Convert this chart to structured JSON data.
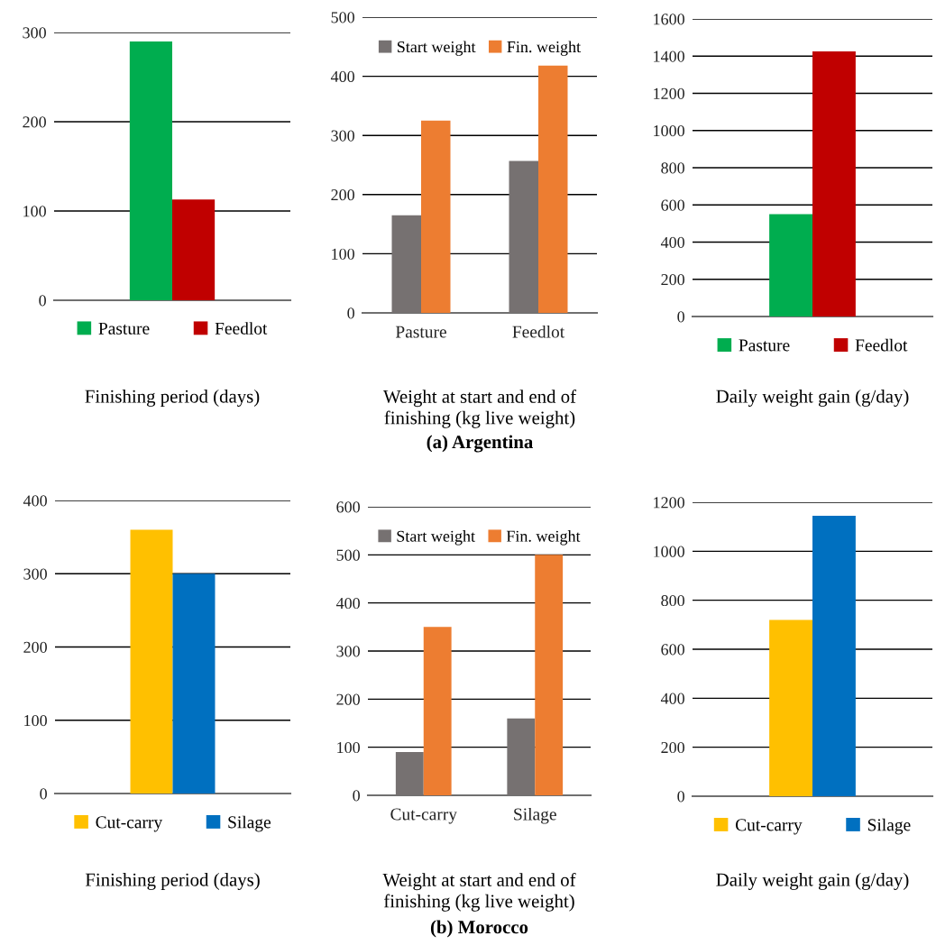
{
  "chart_data": [
    {
      "type": "bar",
      "xlabel": "Finishing period (days)",
      "categories": [
        null
      ],
      "series": [
        {
          "name": "Pasture",
          "color": "#00ad4f",
          "values": [
            290
          ]
        },
        {
          "name": "Feedlot",
          "color": "#c00000",
          "values": [
            113
          ]
        }
      ],
      "ylim": [
        0,
        300
      ],
      "yticks": [
        0,
        100,
        200,
        300
      ],
      "grid": "y",
      "legend": "bottom"
    },
    {
      "type": "bar",
      "xlabel": "Weight at start and end of\nfinishing (kg live weight)",
      "categories": [
        "Pasture",
        "Feedlot"
      ],
      "series": [
        {
          "name": "Start weight",
          "color": "#767171",
          "values": [
            165,
            257
          ]
        },
        {
          "name": "Fin. weight",
          "color": "#ed7d31",
          "values": [
            325,
            418
          ]
        }
      ],
      "ylim": [
        0,
        500
      ],
      "yticks": [
        0,
        100,
        200,
        300,
        400,
        500
      ],
      "grid": "y",
      "legend": "top",
      "annotations": [
        "(a) Argentina"
      ]
    },
    {
      "type": "bar",
      "xlabel": "Daily weight gain (g/day)",
      "categories": [
        null
      ],
      "series": [
        {
          "name": "Pasture",
          "color": "#00ad4f",
          "values": [
            550
          ]
        },
        {
          "name": "Feedlot",
          "color": "#c00000",
          "values": [
            1425
          ]
        }
      ],
      "ylim": [
        0,
        1600
      ],
      "yticks": [
        0,
        200,
        400,
        600,
        800,
        1000,
        1200,
        1400,
        1600
      ],
      "grid": "y",
      "legend": "bottom"
    },
    {
      "type": "bar",
      "xlabel": "Finishing period (days)",
      "categories": [
        null
      ],
      "series": [
        {
          "name": "Cut-carry",
          "color": "#ffc000",
          "values": [
            360
          ]
        },
        {
          "name": "Silage",
          "color": "#0070c0",
          "values": [
            300
          ]
        }
      ],
      "ylim": [
        0,
        400
      ],
      "yticks": [
        0,
        100,
        200,
        300,
        400
      ],
      "grid": "y",
      "legend": "bottom"
    },
    {
      "type": "bar",
      "xlabel": "Weight at start and end of\nfinishing (kg live weight)",
      "categories": [
        "Cut-carry",
        "Silage"
      ],
      "series": [
        {
          "name": "Start weight",
          "color": "#767171",
          "values": [
            90,
            160
          ]
        },
        {
          "name": "Fin. weight",
          "color": "#ed7d31",
          "values": [
            350,
            500
          ]
        }
      ],
      "ylim": [
        0,
        600
      ],
      "yticks": [
        0,
        100,
        200,
        300,
        400,
        500,
        600
      ],
      "grid": "y",
      "legend": "top",
      "annotations": [
        "(b) Morocco"
      ]
    },
    {
      "type": "bar",
      "xlabel": "Daily weight gain (g/day)",
      "categories": [
        null
      ],
      "series": [
        {
          "name": "Cut-carry",
          "color": "#ffc000",
          "values": [
            720
          ]
        },
        {
          "name": "Silage",
          "color": "#0070c0",
          "values": [
            1145
          ]
        }
      ],
      "ylim": [
        0,
        1200
      ],
      "yticks": [
        0,
        200,
        400,
        600,
        800,
        1000,
        1200
      ],
      "grid": "y",
      "legend": "bottom"
    }
  ]
}
